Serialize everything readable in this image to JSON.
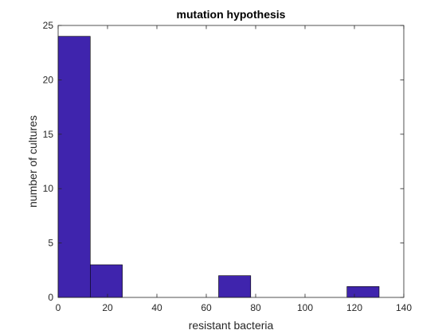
{
  "chart_data": {
    "type": "bar",
    "title": "mutation hypothesis",
    "xlabel": "resistant bacteria",
    "ylabel": "number of cultures",
    "xlim": [
      0,
      140
    ],
    "ylim": [
      0,
      25
    ],
    "bin_edges": [
      0,
      13,
      26,
      39,
      52,
      65,
      78,
      91,
      104,
      117,
      130
    ],
    "values": [
      24,
      3,
      0,
      0,
      0,
      2,
      0,
      0,
      0,
      1
    ],
    "xticks": [
      "0",
      "20",
      "40",
      "60",
      "80",
      "100",
      "120",
      "140"
    ],
    "yticks": [
      "0",
      "5",
      "10",
      "15",
      "20",
      "25"
    ],
    "grid": false,
    "bar_color": "#3f24ad",
    "edge_color": "#000000"
  }
}
